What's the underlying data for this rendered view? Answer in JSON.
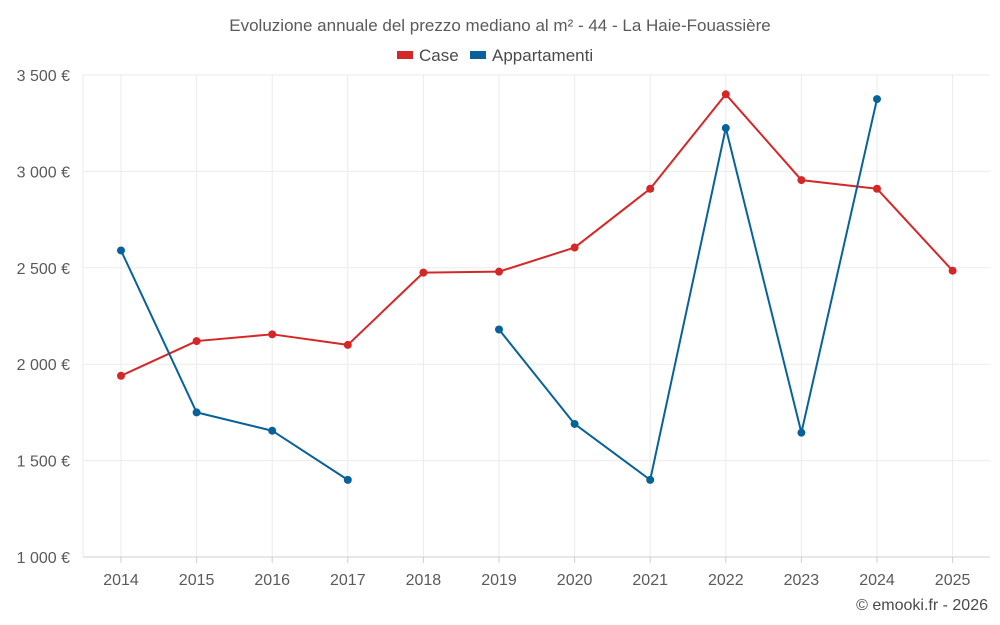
{
  "chart_data": {
    "type": "line",
    "title": "Evoluzione annuale del prezzo mediano al m² - 44 - La Haie-Fouassière",
    "categories": [
      "2014",
      "2015",
      "2016",
      "2017",
      "2018",
      "2019",
      "2020",
      "2021",
      "2022",
      "2023",
      "2024",
      "2025"
    ],
    "ylim": [
      1000,
      3500
    ],
    "yticks": [
      1000,
      1500,
      2000,
      2500,
      3000,
      3500
    ],
    "ytick_labels": [
      "1 000 €",
      "1 500 €",
      "2 000 €",
      "2 500 €",
      "3 000 €",
      "3 500 €"
    ],
    "series": [
      {
        "name": "Case",
        "color": "#d62728",
        "values": [
          1940,
          2120,
          2155,
          2100,
          2475,
          2480,
          2605,
          2910,
          3400,
          2955,
          2910,
          2485
        ]
      },
      {
        "name": "Appartamenti",
        "color": "#08629a",
        "values": [
          2590,
          1750,
          1655,
          1400,
          null,
          2180,
          1690,
          1400,
          3225,
          1645,
          3375,
          null
        ]
      }
    ],
    "credit": "© emooki.fr - 2026"
  }
}
